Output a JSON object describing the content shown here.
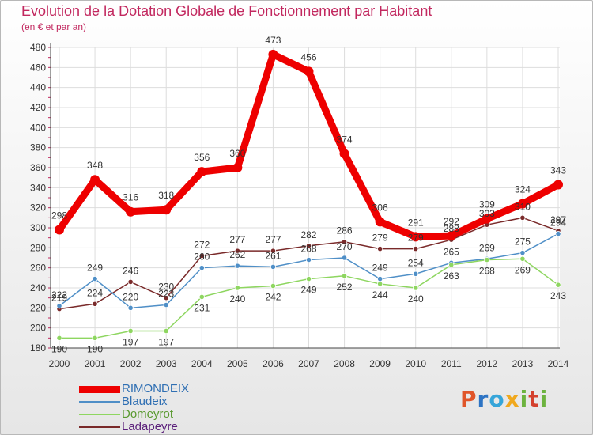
{
  "title": "Evolution de la Dotation Globale de Fonctionnement par Habitant",
  "subtitle": "(en € et par an)",
  "logo_letters": [
    "P",
    "r",
    "o",
    "x",
    "i",
    "t",
    "i"
  ],
  "chart_data": {
    "type": "line",
    "title": "Evolution de la Dotation Globale de Fonctionnement par Habitant",
    "subtitle": "(en € et par an)",
    "xlabel": "",
    "ylabel": "",
    "ylim": [
      180,
      480
    ],
    "yticks": [
      180,
      200,
      220,
      240,
      260,
      280,
      300,
      320,
      340,
      360,
      380,
      400,
      420,
      440,
      460,
      480
    ],
    "x": [
      "2000",
      "2001",
      "2002",
      "2003",
      "2004",
      "2005",
      "2006",
      "2007",
      "2008",
      "2009",
      "2010",
      "2011",
      "2012",
      "2013",
      "2014"
    ],
    "grid": true,
    "legend_position": "bottom-left",
    "series": [
      {
        "name": "RIMONDEIX",
        "color": "#ee0000",
        "values": [
          298,
          348,
          316,
          318,
          356,
          360,
          473,
          456,
          374,
          306,
          291,
          292,
          309,
          324,
          343
        ]
      },
      {
        "name": "Blaudeix",
        "color": "#4f8fc7",
        "values": [
          222,
          249,
          220,
          223,
          260,
          262,
          261,
          268,
          270,
          249,
          254,
          265,
          269,
          275,
          294
        ]
      },
      {
        "name": "Domeyrot",
        "color": "#8ed660",
        "values": [
          190,
          190,
          197,
          197,
          231,
          240,
          242,
          249,
          252,
          244,
          240,
          263,
          268,
          269,
          243
        ]
      },
      {
        "name": "Ladapeyre",
        "color": "#7a2a2a",
        "values": [
          219,
          224,
          246,
          230,
          272,
          277,
          277,
          282,
          286,
          279,
          279,
          288,
          303,
          310,
          297
        ]
      }
    ]
  }
}
